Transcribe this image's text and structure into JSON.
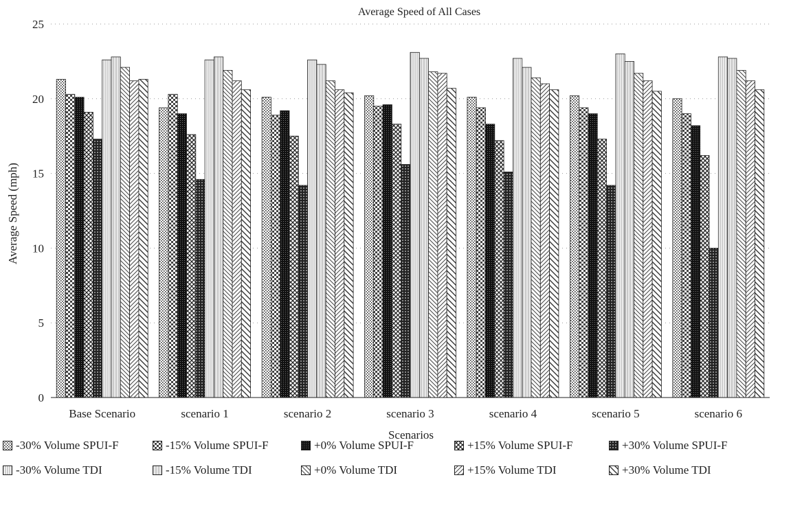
{
  "chart_data": {
    "type": "bar",
    "title": "Average Speed of All Cases",
    "xlabel": "Scenarios",
    "ylabel": "Average Speed (mph)",
    "ylim": [
      0,
      25
    ],
    "yticks": [
      0,
      5,
      10,
      15,
      20,
      25
    ],
    "grid": "dotted-horizontal",
    "legend_position": "bottom",
    "categories": [
      "Base Scenario",
      "scenario 1",
      "scenario 2",
      "scenario 3",
      "scenario 4",
      "scenario 5",
      "scenario 6"
    ],
    "series": [
      {
        "name": "-30% Volume SPUI-F",
        "pattern": "dots-fine",
        "values": [
          21.3,
          19.4,
          20.1,
          20.2,
          20.1,
          20.2,
          20.0
        ]
      },
      {
        "name": "-15% Volume SPUI-F",
        "pattern": "checker",
        "values": [
          20.3,
          20.3,
          18.9,
          19.5,
          19.4,
          19.4,
          19.0
        ]
      },
      {
        "name": "+0% Volume SPUI-F",
        "pattern": "dense-dark",
        "values": [
          20.1,
          19.0,
          19.2,
          19.6,
          18.3,
          19.0,
          18.2
        ]
      },
      {
        "name": "+15% Volume SPUI-F",
        "pattern": "crosshatch",
        "values": [
          19.1,
          17.6,
          17.5,
          18.3,
          17.2,
          17.3,
          16.2
        ]
      },
      {
        "name": "+30% Volume SPUI-F",
        "pattern": "dark-grid",
        "values": [
          17.3,
          14.6,
          14.2,
          15.6,
          15.1,
          14.2,
          10.0
        ]
      },
      {
        "name": "-30% Volume TDI",
        "pattern": "vertical-lines",
        "values": [
          22.6,
          22.6,
          22.6,
          23.1,
          22.7,
          23.0,
          22.8
        ]
      },
      {
        "name": "-15% Volume TDI",
        "pattern": "light-vertical",
        "values": [
          22.8,
          22.8,
          22.3,
          22.7,
          22.1,
          22.5,
          22.7
        ]
      },
      {
        "name": "+0% Volume TDI",
        "pattern": "diag-back",
        "values": [
          22.1,
          21.9,
          21.2,
          21.8,
          21.4,
          21.7,
          21.9
        ]
      },
      {
        "name": "+15% Volume TDI",
        "pattern": "diag-fwd",
        "values": [
          21.2,
          21.2,
          20.6,
          21.7,
          21.0,
          21.2,
          21.2
        ]
      },
      {
        "name": "+30% Volume TDI",
        "pattern": "diag-back-wide",
        "values": [
          21.3,
          20.6,
          20.4,
          20.7,
          20.6,
          20.5,
          20.6
        ]
      }
    ]
  }
}
